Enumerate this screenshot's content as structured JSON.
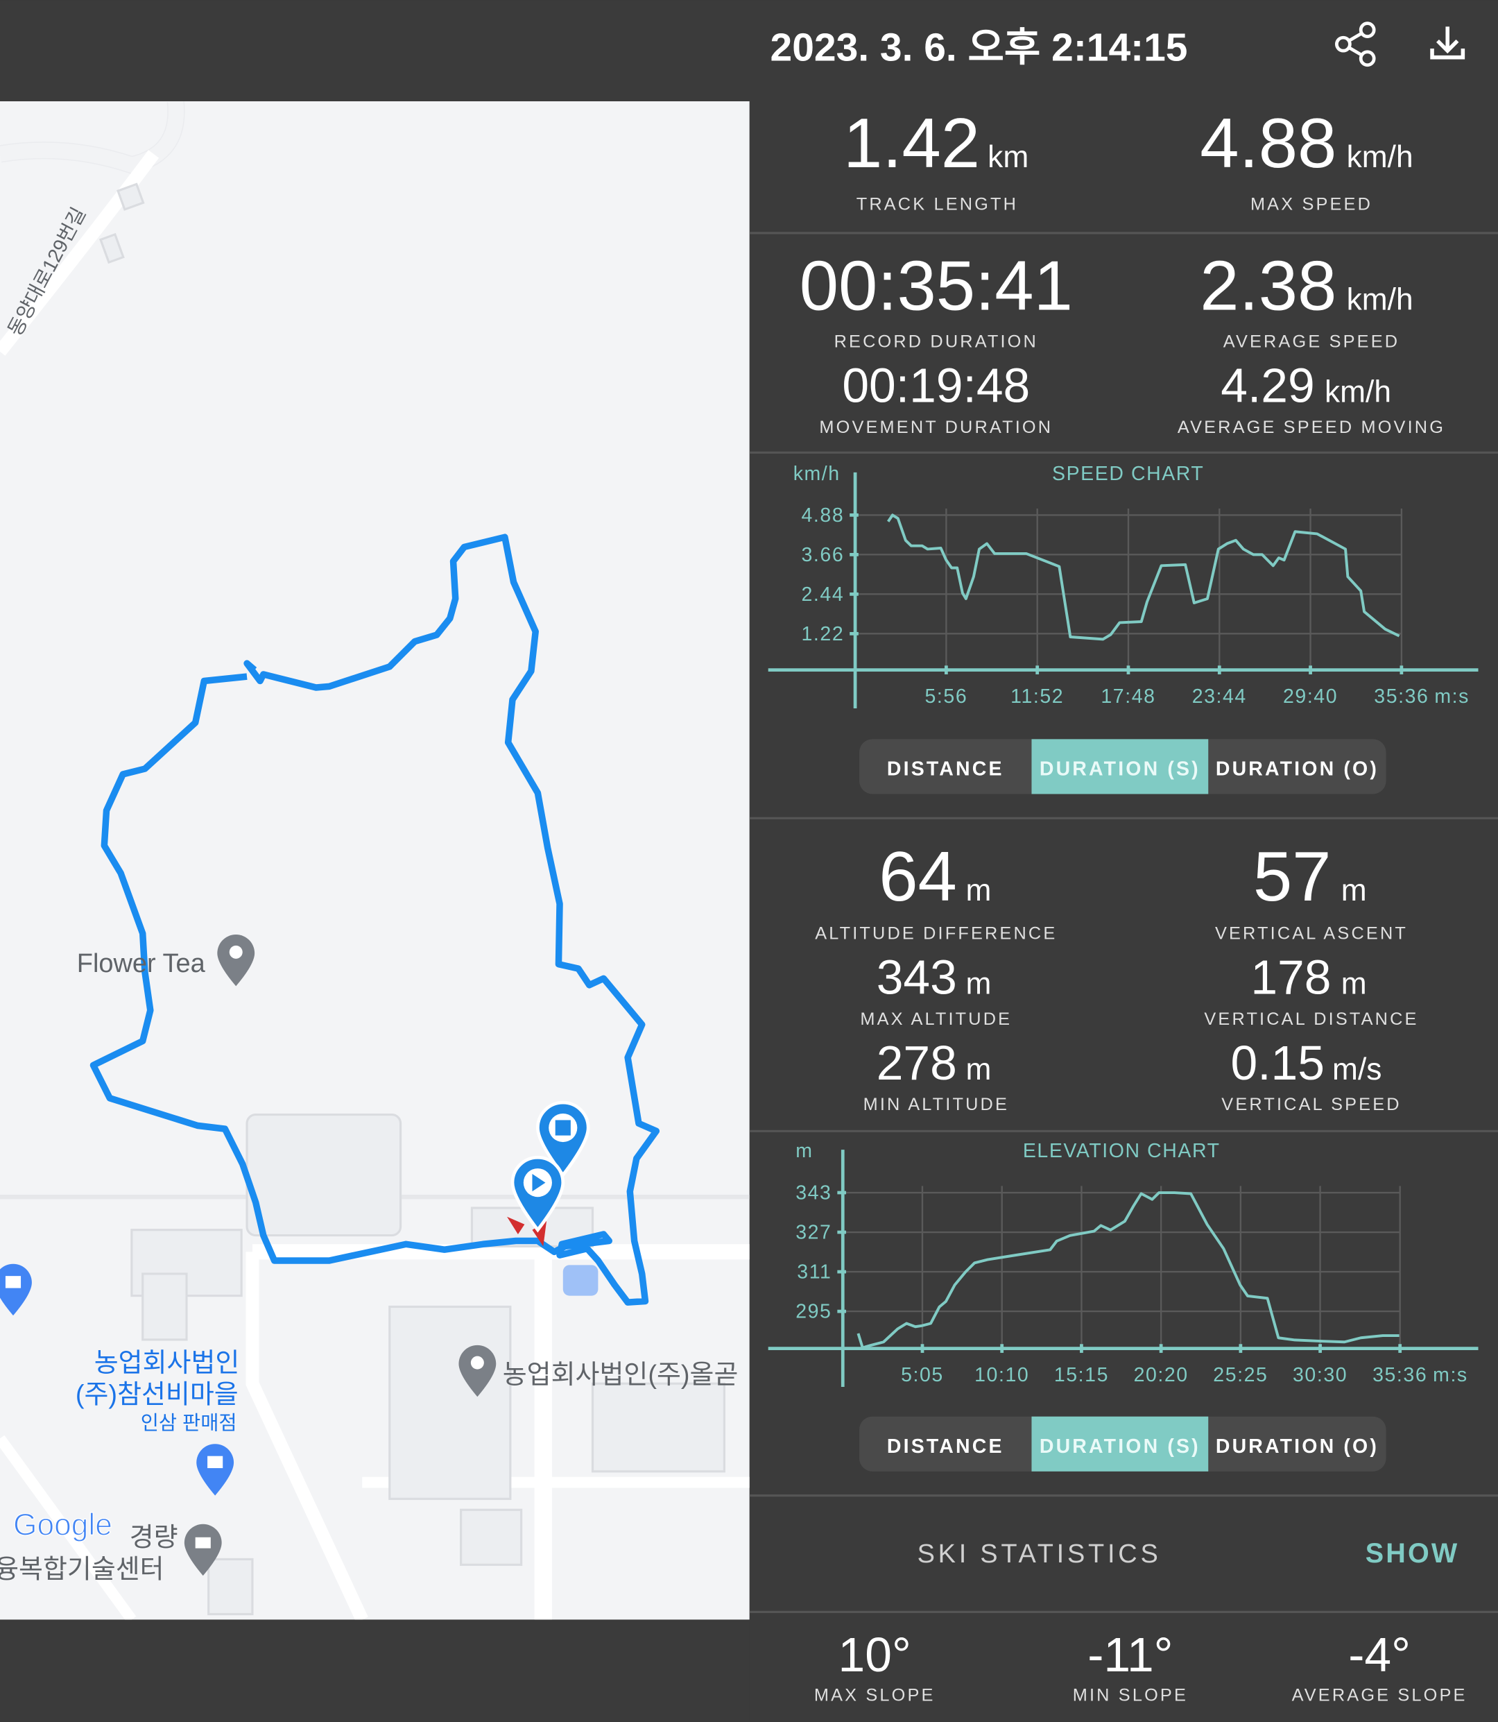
{
  "header": {
    "title": "2023. 3. 6. 오후 2:14:15"
  },
  "map": {
    "street": "동양대로129번길",
    "place_flower": "Flower Tea",
    "place_shop_line1": "농업회사법인",
    "place_shop_line2": "(주)참선비마을",
    "place_shop_type": "인삼 판매점",
    "place_company": "농업회사법인(주)올곧",
    "place_center_line1": "경량",
    "place_center_line2": "융복합기술센터",
    "logo": "Google"
  },
  "summary": {
    "track_length": {
      "value": "1.42",
      "unit": "km",
      "label": "TRACK LENGTH"
    },
    "max_speed": {
      "value": "4.88",
      "unit": "km/h",
      "label": "MAX SPEED"
    },
    "record_duration": {
      "value": "00:35:41",
      "label": "RECORD DURATION"
    },
    "average_speed": {
      "value": "2.38",
      "unit": "km/h",
      "label": "AVERAGE SPEED"
    },
    "movement_duration": {
      "value": "00:19:48",
      "label": "MOVEMENT DURATION"
    },
    "average_speed_moving": {
      "value": "4.29",
      "unit": "km/h",
      "label": "AVERAGE SPEED MOVING"
    }
  },
  "speed_chart": {
    "type": "line",
    "title": "SPEED CHART",
    "y_label": "km/h",
    "x_unit": "m:s",
    "color": "#80cbc4",
    "grid": true,
    "x": [
      129,
      146,
      167,
      197,
      219,
      262,
      283,
      335,
      356,
      377,
      399,
      420,
      433,
      463,
      485,
      515,
      545,
      669,
      798,
      841,
      969,
      999,
      1034,
      1119,
      1141,
      1197,
      1291,
      1325,
      1377,
      1420,
      1454,
      1488,
      1518,
      1557,
      1591,
      1634,
      1656,
      1677,
      1720,
      1806,
      1917,
      1926,
      1977,
      1990,
      2072,
      2127
    ],
    "values": [
      4.68,
      4.88,
      4.78,
      4.1,
      3.93,
      3.93,
      3.83,
      3.86,
      3.49,
      3.25,
      3.25,
      2.47,
      2.3,
      2.98,
      3.83,
      4.0,
      3.69,
      3.69,
      3.29,
      1.12,
      1.05,
      1.19,
      1.56,
      1.59,
      2.2,
      3.32,
      3.35,
      2.17,
      2.3,
      3.83,
      4.0,
      4.1,
      3.83,
      3.66,
      3.66,
      3.32,
      3.56,
      3.49,
      4.37,
      4.3,
      3.83,
      2.98,
      2.54,
      1.9,
      1.36,
      1.15
    ],
    "xlim": [
      -340,
      2436
    ],
    "ylim": [
      0.1,
      5.08
    ],
    "xticks": [
      {
        "value": 356,
        "label": "5:56"
      },
      {
        "value": 712,
        "label": "11:52"
      },
      {
        "value": 1068,
        "label": "17:48"
      },
      {
        "value": 1424,
        "label": "23:44"
      },
      {
        "value": 1780,
        "label": "29:40"
      },
      {
        "value": 2136,
        "label": "35:36"
      }
    ],
    "yticks": [
      1.22,
      2.44,
      3.66,
      4.88
    ],
    "toggle": {
      "options": [
        "DISTANCE",
        "DURATION (S)",
        "DURATION (O)"
      ],
      "selected": 1
    }
  },
  "altitude": {
    "altitude_difference": {
      "value": "64",
      "unit": "m",
      "label": "ALTITUDE DIFFERENCE"
    },
    "vertical_ascent": {
      "value": "57",
      "unit": "m",
      "label": "VERTICAL ASCENT"
    },
    "max_altitude": {
      "value": "343",
      "unit": "m",
      "label": "MAX ALTITUDE"
    },
    "vertical_distance": {
      "value": "178",
      "unit": "m",
      "label": "VERTICAL DISTANCE"
    },
    "min_altitude": {
      "value": "278",
      "unit": "m",
      "label": "MIN ALTITUDE"
    },
    "vertical_speed": {
      "value": "0.15",
      "unit": "m/s",
      "label": "VERTICAL SPEED"
    }
  },
  "elevation_chart": {
    "type": "line",
    "title": "ELEVATION CHART",
    "y_label": "m",
    "x_unit": "m:s",
    "color": "#80cbc4",
    "grid": true,
    "x": [
      59,
      76,
      105,
      156,
      210,
      244,
      278,
      303,
      337,
      370,
      395,
      429,
      471,
      505,
      555,
      660,
      795,
      820,
      871,
      963,
      989,
      1026,
      1081,
      1115,
      1144,
      1186,
      1212,
      1271,
      1334,
      1397,
      1460,
      1523,
      1552,
      1628,
      1670,
      1733,
      1817,
      1923,
      1986,
      2070,
      2133
    ],
    "values": [
      286.1,
      280.3,
      281.2,
      282.6,
      287.9,
      290.1,
      288.8,
      289.2,
      290.1,
      296.8,
      299.0,
      305.7,
      311.0,
      314.6,
      315.9,
      317.7,
      319.9,
      323.4,
      325.7,
      327.4,
      329.7,
      327.9,
      331.4,
      337.7,
      342.6,
      340.3,
      343,
      343,
      342.6,
      330.1,
      320.3,
      305.7,
      301.2,
      300.3,
      284.3,
      283.4,
      283.0,
      282.6,
      284.3,
      285.2,
      285.2
    ],
    "xlim": [
      -286,
      2436
    ],
    "ylim": [
      280,
      345.7
    ],
    "xticks": [
      {
        "value": 305,
        "label": "5:05"
      },
      {
        "value": 610,
        "label": "10:10"
      },
      {
        "value": 915,
        "label": "15:15"
      },
      {
        "value": 1220,
        "label": "20:20"
      },
      {
        "value": 1525,
        "label": "25:25"
      },
      {
        "value": 1830,
        "label": "30:30"
      },
      {
        "value": 2136,
        "label": "35:36"
      }
    ],
    "yticks": [
      295,
      311,
      327,
      343
    ],
    "toggle": {
      "options": [
        "DISTANCE",
        "DURATION (S)",
        "DURATION (O)"
      ],
      "selected": 1
    }
  },
  "ski": {
    "title": "SKI STATISTICS",
    "action": "SHOW"
  },
  "slopes": {
    "max_slope": {
      "value": "10°",
      "label": "MAX SLOPE"
    },
    "min_slope": {
      "value": "-11°",
      "label": "MIN SLOPE"
    },
    "average_slope": {
      "value": "-4°",
      "label": "AVERAGE SLOPE"
    }
  }
}
